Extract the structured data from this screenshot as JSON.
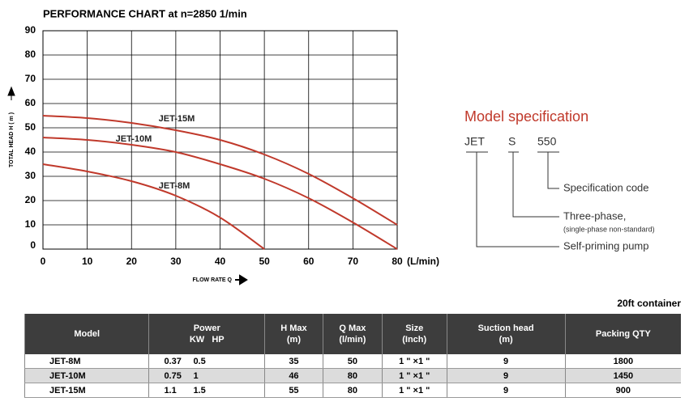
{
  "chart_data": {
    "type": "line",
    "title": "PERFORMANCE CHART at n=2850 1/min",
    "y_label": "TOTAL HEAD H ( m )",
    "x_label": "FLOW RATE Q",
    "x_unit": "(L/min)",
    "x": [
      0,
      10,
      20,
      30,
      40,
      50,
      60,
      70,
      80
    ],
    "series": [
      {
        "name": "JET-15M",
        "color": "#c0392b",
        "values": [
          55,
          54,
          52,
          49,
          45,
          39,
          31,
          21,
          10
        ]
      },
      {
        "name": "JET-10M",
        "color": "#c0392b",
        "values": [
          46,
          45,
          43,
          40,
          35,
          29,
          21,
          11,
          0
        ]
      },
      {
        "name": "JET-8M",
        "color": "#c0392b",
        "values": [
          35,
          32,
          28,
          22,
          13,
          0,
          null,
          null,
          null
        ]
      }
    ],
    "xlim": [
      0,
      80
    ],
    "xticks": [
      0,
      10,
      20,
      30,
      40,
      50,
      60,
      70,
      80
    ],
    "ylim": [
      0,
      90
    ],
    "yticks": [
      0,
      10,
      20,
      30,
      40,
      50,
      60,
      70,
      80,
      90
    ],
    "grid": true
  },
  "model_spec": {
    "title": "Model specification",
    "codes": [
      "JET",
      "S",
      "550"
    ],
    "descriptions": {
      "spec_code": "Specification code",
      "three_phase": "Three-phase,",
      "three_phase_note": "(single-phase non-standard)",
      "self_priming": "Self-priming pump"
    }
  },
  "table": {
    "caption": "20ft container",
    "header": [
      [
        "Model"
      ],
      [
        "Power",
        "KW   HP"
      ],
      [
        "H Max",
        "(m)"
      ],
      [
        "Q Max",
        "(l/min)"
      ],
      [
        "Size",
        "(Inch)"
      ],
      [
        "Suction head",
        "(m)"
      ],
      [
        "Packing QTY"
      ]
    ],
    "rows": [
      [
        "JET-8M",
        "0.37",
        "0.5",
        "35",
        "50",
        "1 \" ×1 \"",
        "9",
        "1800"
      ],
      [
        "JET-10M",
        "0.75",
        "1",
        "46",
        "80",
        "1 \" ×1 \"",
        "9",
        "1450"
      ],
      [
        "JET-15M",
        "1.1",
        "1.5",
        "55",
        "80",
        "1 \" ×1 \"",
        "9",
        "900"
      ]
    ]
  }
}
